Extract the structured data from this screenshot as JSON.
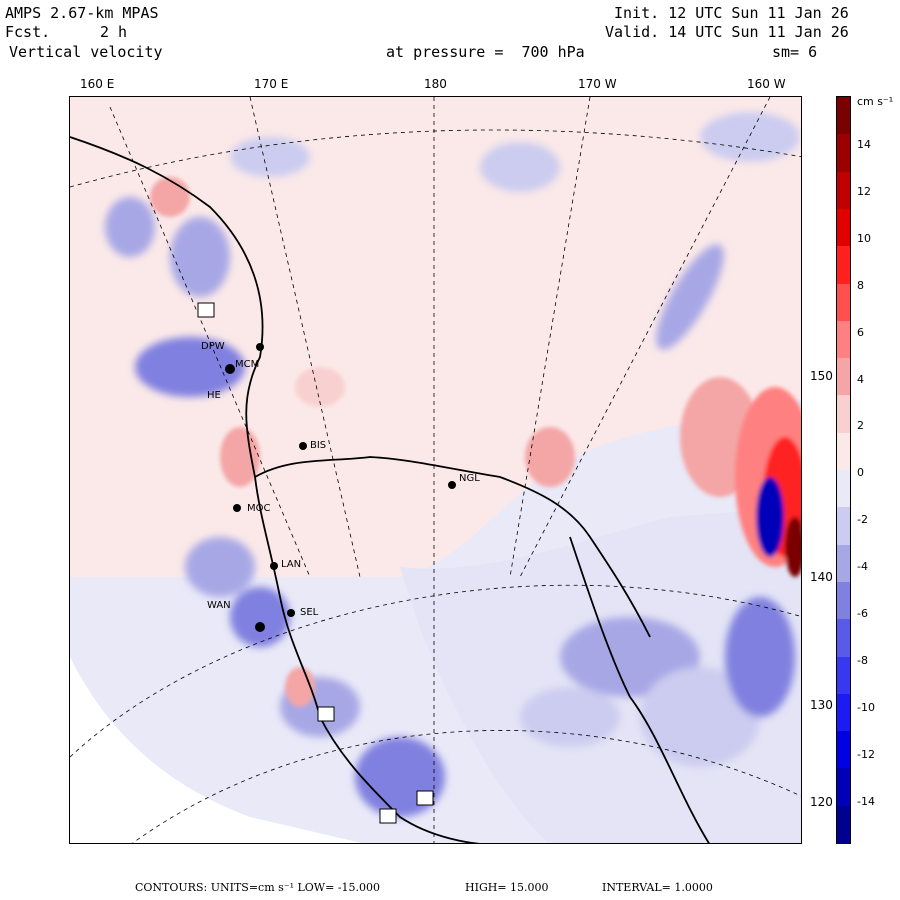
{
  "header": {
    "model": "AMPS 2.67-km MPAS",
    "fcst_label": "Fcst.",
    "fcst_value": "2 h",
    "variable": "Vertical velocity",
    "init": "Init. 12 UTC Sun 11 Jan 26",
    "valid": "Valid. 14 UTC Sun 11 Jan 26",
    "level": "at pressure =  700 hPa",
    "smoothing": "sm= 6"
  },
  "longitude_labels": [
    "160 E",
    "170 E",
    "180",
    "170 W",
    "160 W"
  ],
  "latitude_labels": [
    "150 W",
    "140 W",
    "130 W",
    "120 W"
  ],
  "stations": [
    "DPW",
    "MCM",
    "HE",
    "BIS",
    "NGL",
    "MOC",
    "LAN",
    "WAN",
    "SEL"
  ],
  "colorbar": {
    "units": "cm s⁻¹",
    "labels": [
      "14",
      "12",
      "10",
      "8",
      "6",
      "4",
      "2",
      "0",
      "-2",
      "-4",
      "-6",
      "-8",
      "-10",
      "-12",
      "-14"
    ],
    "colors": [
      "#7a0000",
      "#9b0000",
      "#c00000",
      "#e00000",
      "#ff2020",
      "#ff5050",
      "#ff8080",
      "#f4a6a6",
      "#f9d0d0",
      "#fbe9e9",
      "#e9e9f8",
      "#ccccf0",
      "#a7a7e6",
      "#8080e0",
      "#5a5ae8",
      "#3838f0",
      "#1c1cf2",
      "#0000e0",
      "#0000b8",
      "#000090"
    ]
  },
  "footer": {
    "contours": "CONTOURS:  UNITS=cm s⁻¹  LOW= -15.000",
    "high": "HIGH=  15.000",
    "interval": "INTERVAL=   1.0000"
  }
}
